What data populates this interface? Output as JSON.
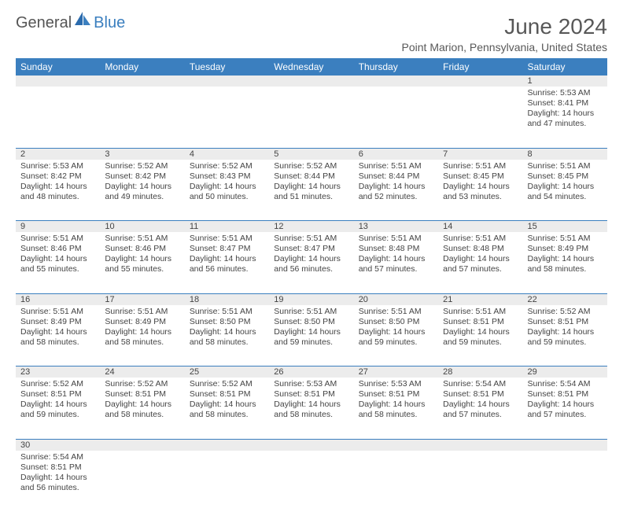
{
  "logo": {
    "text1": "General",
    "text2": "Blue"
  },
  "title": "June 2024",
  "location": "Point Marion, Pennsylvania, United States",
  "colors": {
    "header_bg": "#3b7fbf",
    "header_text": "#ffffff",
    "daynum_bg": "#ececec",
    "border": "#3b7fbf",
    "text": "#444444",
    "title_text": "#585858"
  },
  "day_headers": [
    "Sunday",
    "Monday",
    "Tuesday",
    "Wednesday",
    "Thursday",
    "Friday",
    "Saturday"
  ],
  "weeks": [
    [
      null,
      null,
      null,
      null,
      null,
      null,
      {
        "n": "1",
        "sr": "5:53 AM",
        "ss": "8:41 PM",
        "dl": "14 hours and 47 minutes."
      }
    ],
    [
      {
        "n": "2",
        "sr": "5:53 AM",
        "ss": "8:42 PM",
        "dl": "14 hours and 48 minutes."
      },
      {
        "n": "3",
        "sr": "5:52 AM",
        "ss": "8:42 PM",
        "dl": "14 hours and 49 minutes."
      },
      {
        "n": "4",
        "sr": "5:52 AM",
        "ss": "8:43 PM",
        "dl": "14 hours and 50 minutes."
      },
      {
        "n": "5",
        "sr": "5:52 AM",
        "ss": "8:44 PM",
        "dl": "14 hours and 51 minutes."
      },
      {
        "n": "6",
        "sr": "5:51 AM",
        "ss": "8:44 PM",
        "dl": "14 hours and 52 minutes."
      },
      {
        "n": "7",
        "sr": "5:51 AM",
        "ss": "8:45 PM",
        "dl": "14 hours and 53 minutes."
      },
      {
        "n": "8",
        "sr": "5:51 AM",
        "ss": "8:45 PM",
        "dl": "14 hours and 54 minutes."
      }
    ],
    [
      {
        "n": "9",
        "sr": "5:51 AM",
        "ss": "8:46 PM",
        "dl": "14 hours and 55 minutes."
      },
      {
        "n": "10",
        "sr": "5:51 AM",
        "ss": "8:46 PM",
        "dl": "14 hours and 55 minutes."
      },
      {
        "n": "11",
        "sr": "5:51 AM",
        "ss": "8:47 PM",
        "dl": "14 hours and 56 minutes."
      },
      {
        "n": "12",
        "sr": "5:51 AM",
        "ss": "8:47 PM",
        "dl": "14 hours and 56 minutes."
      },
      {
        "n": "13",
        "sr": "5:51 AM",
        "ss": "8:48 PM",
        "dl": "14 hours and 57 minutes."
      },
      {
        "n": "14",
        "sr": "5:51 AM",
        "ss": "8:48 PM",
        "dl": "14 hours and 57 minutes."
      },
      {
        "n": "15",
        "sr": "5:51 AM",
        "ss": "8:49 PM",
        "dl": "14 hours and 58 minutes."
      }
    ],
    [
      {
        "n": "16",
        "sr": "5:51 AM",
        "ss": "8:49 PM",
        "dl": "14 hours and 58 minutes."
      },
      {
        "n": "17",
        "sr": "5:51 AM",
        "ss": "8:49 PM",
        "dl": "14 hours and 58 minutes."
      },
      {
        "n": "18",
        "sr": "5:51 AM",
        "ss": "8:50 PM",
        "dl": "14 hours and 58 minutes."
      },
      {
        "n": "19",
        "sr": "5:51 AM",
        "ss": "8:50 PM",
        "dl": "14 hours and 59 minutes."
      },
      {
        "n": "20",
        "sr": "5:51 AM",
        "ss": "8:50 PM",
        "dl": "14 hours and 59 minutes."
      },
      {
        "n": "21",
        "sr": "5:51 AM",
        "ss": "8:51 PM",
        "dl": "14 hours and 59 minutes."
      },
      {
        "n": "22",
        "sr": "5:52 AM",
        "ss": "8:51 PM",
        "dl": "14 hours and 59 minutes."
      }
    ],
    [
      {
        "n": "23",
        "sr": "5:52 AM",
        "ss": "8:51 PM",
        "dl": "14 hours and 59 minutes."
      },
      {
        "n": "24",
        "sr": "5:52 AM",
        "ss": "8:51 PM",
        "dl": "14 hours and 58 minutes."
      },
      {
        "n": "25",
        "sr": "5:52 AM",
        "ss": "8:51 PM",
        "dl": "14 hours and 58 minutes."
      },
      {
        "n": "26",
        "sr": "5:53 AM",
        "ss": "8:51 PM",
        "dl": "14 hours and 58 minutes."
      },
      {
        "n": "27",
        "sr": "5:53 AM",
        "ss": "8:51 PM",
        "dl": "14 hours and 58 minutes."
      },
      {
        "n": "28",
        "sr": "5:54 AM",
        "ss": "8:51 PM",
        "dl": "14 hours and 57 minutes."
      },
      {
        "n": "29",
        "sr": "5:54 AM",
        "ss": "8:51 PM",
        "dl": "14 hours and 57 minutes."
      }
    ],
    [
      {
        "n": "30",
        "sr": "5:54 AM",
        "ss": "8:51 PM",
        "dl": "14 hours and 56 minutes."
      },
      null,
      null,
      null,
      null,
      null,
      null
    ]
  ],
  "labels": {
    "sunrise": "Sunrise: ",
    "sunset": "Sunset: ",
    "daylight": "Daylight: "
  }
}
